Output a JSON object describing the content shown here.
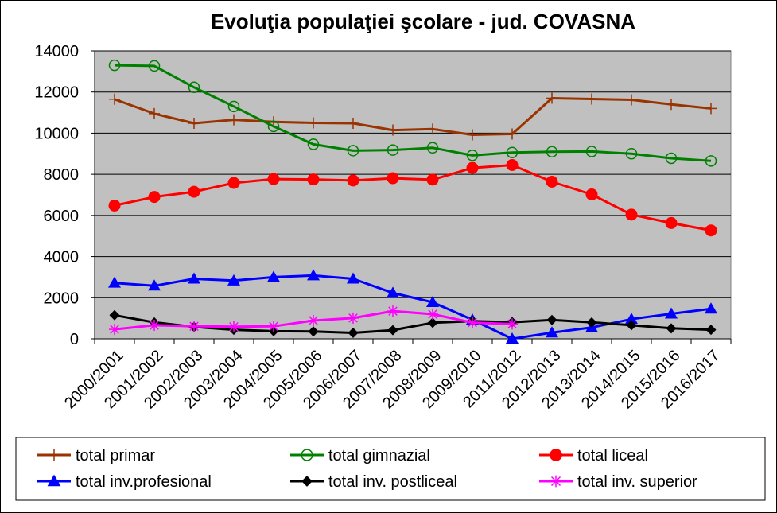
{
  "chart_data": {
    "type": "line",
    "title": "Evoluţia populaţiei şcolare - jud. COVASNA",
    "xlabel": "",
    "ylabel": "",
    "ylim": [
      0,
      14000
    ],
    "yticks": [
      0,
      2000,
      4000,
      6000,
      8000,
      10000,
      12000,
      14000
    ],
    "grid": true,
    "legend_position": "bottom",
    "plot_background": "#c0c0c0",
    "categories": [
      "2000/2001",
      "2001/2002",
      "2002/2003",
      "2003/2004",
      "2004/2005",
      "2005/2006",
      "2006/2007",
      "2007/2008",
      "2008/2009",
      "2009/2010",
      "2011/2012",
      "2012/2013",
      "2013/2014",
      "2014/2015",
      "2015/2016",
      "2016/2017"
    ],
    "series": [
      {
        "name": "total primar",
        "color": "#993300",
        "marker": "plus",
        "values": [
          11650,
          10950,
          10480,
          10650,
          10550,
          10500,
          10480,
          10150,
          10200,
          9920,
          9960,
          11700,
          11660,
          11620,
          11400,
          11200
        ]
      },
      {
        "name": "total gimnazial",
        "color": "#008000",
        "marker": "open-circle",
        "values": [
          13300,
          13270,
          12230,
          11300,
          10330,
          9460,
          9150,
          9180,
          9290,
          8920,
          9060,
          9100,
          9110,
          9000,
          8780,
          8650
        ]
      },
      {
        "name": "total liceal",
        "color": "#ff0000",
        "marker": "filled-circle",
        "values": [
          6480,
          6900,
          7150,
          7580,
          7770,
          7750,
          7700,
          7810,
          7740,
          8310,
          8450,
          7640,
          7020,
          6040,
          5630,
          5270
        ]
      },
      {
        "name": "total inv.profesional",
        "color": "#0000ff",
        "marker": "triangle",
        "values": [
          2720,
          2580,
          2920,
          2830,
          3000,
          3080,
          2920,
          2230,
          1780,
          930,
          0,
          300,
          550,
          960,
          1220,
          1460
        ]
      },
      {
        "name": "total inv. postliceal",
        "color": "#000000",
        "marker": "diamond",
        "values": [
          1150,
          800,
          580,
          440,
          370,
          360,
          290,
          420,
          780,
          860,
          810,
          920,
          800,
          660,
          510,
          440
        ]
      },
      {
        "name": "total inv. superior",
        "color": "#ff00ff",
        "marker": "asterisk",
        "values": [
          460,
          660,
          610,
          590,
          610,
          890,
          1010,
          1350,
          1200,
          790,
          720,
          null,
          null,
          null,
          null,
          null
        ]
      }
    ]
  }
}
